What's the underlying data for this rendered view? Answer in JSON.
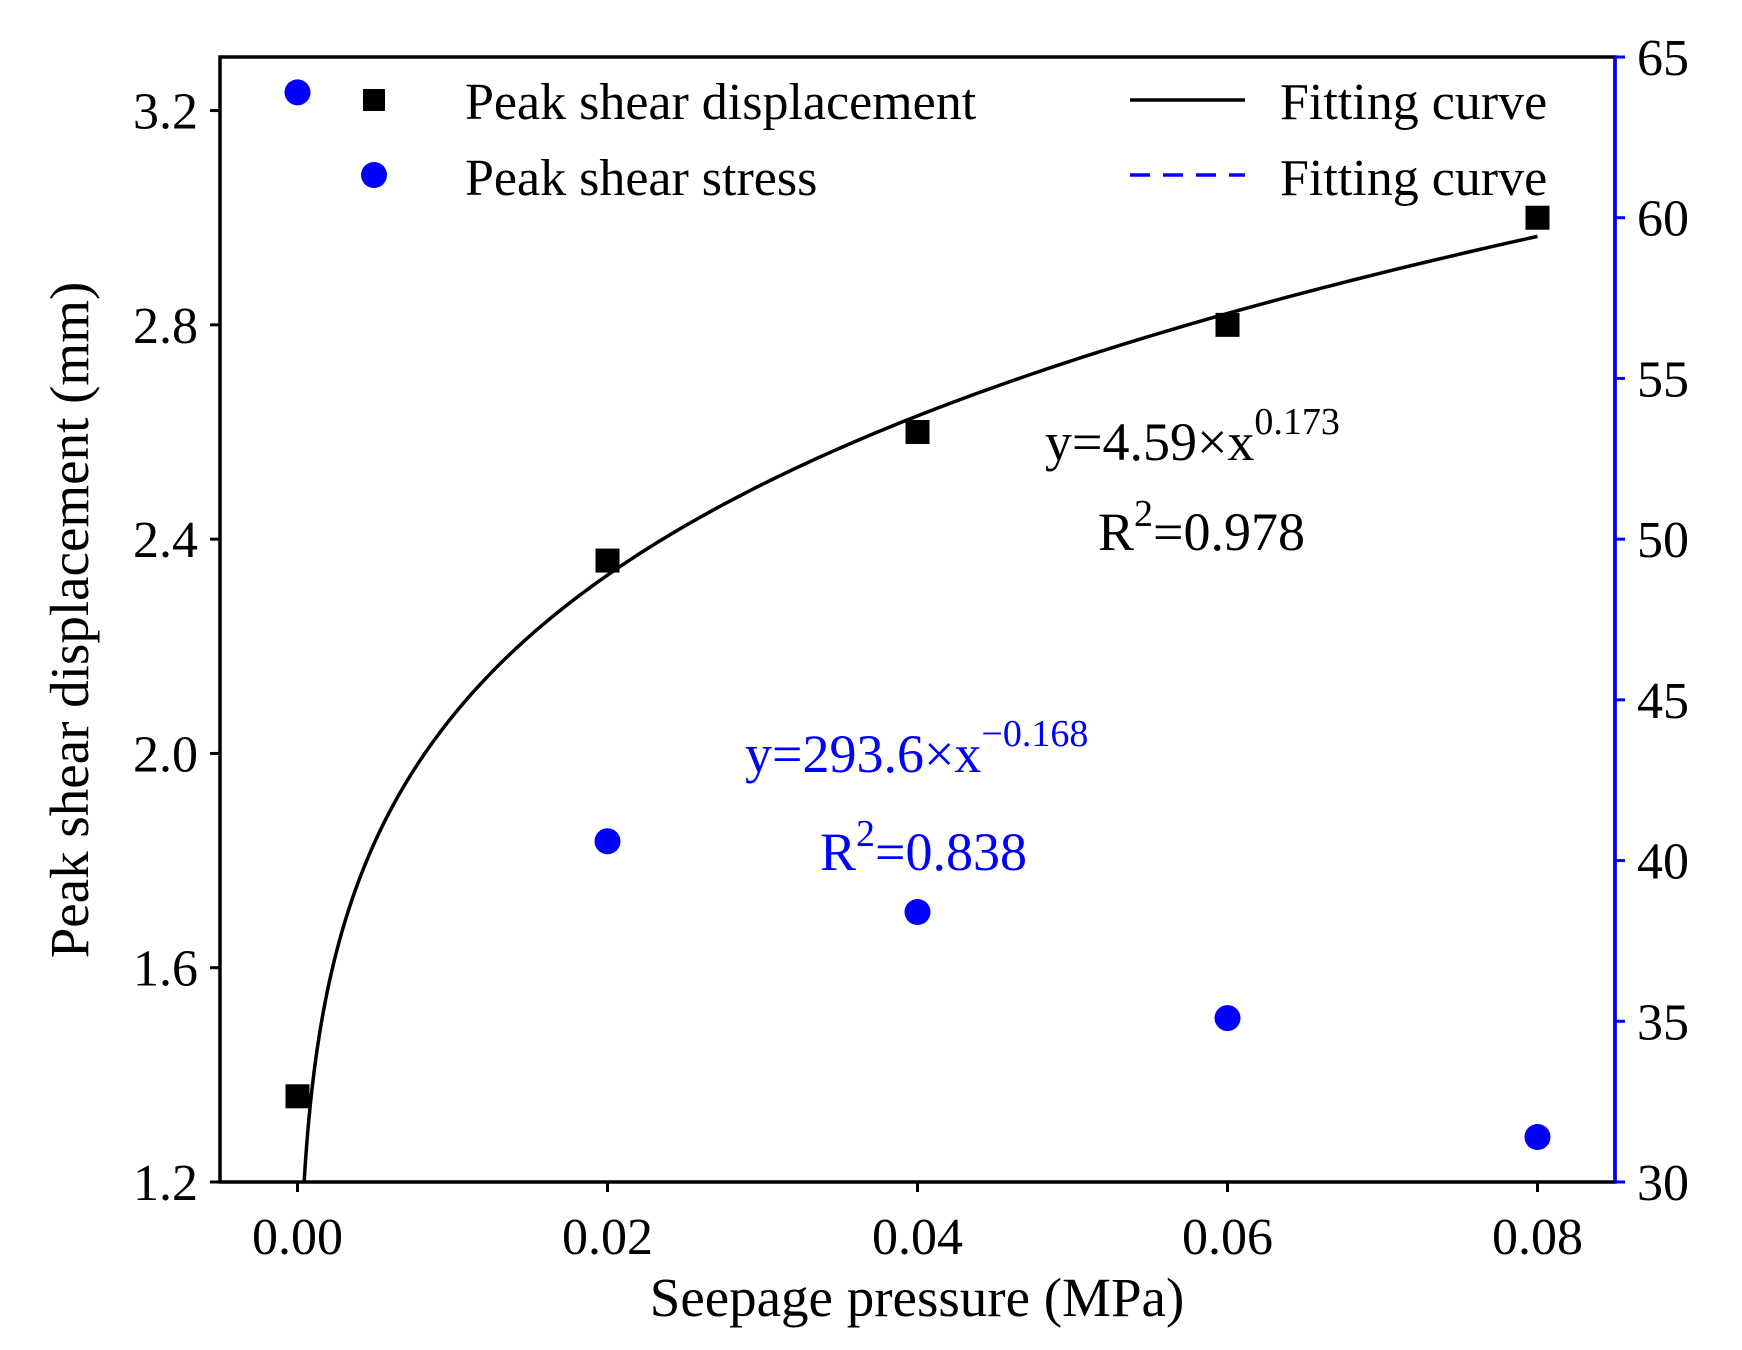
{
  "chart_data": {
    "type": "scatter",
    "title": "",
    "xlabel": "Seepage pressure (MPa)",
    "ylabel": "Peak shear displacement (mm)",
    "y2label": "",
    "xlim": [
      -0.005,
      0.085
    ],
    "ylim": [
      1.2,
      3.3
    ],
    "y2lim": [
      30,
      65
    ],
    "x_ticks": [
      "0.00",
      "0.02",
      "0.04",
      "0.06",
      "0.08"
    ],
    "y_ticks": [
      "1.2",
      "1.6",
      "2.0",
      "2.4",
      "2.8",
      "3.2"
    ],
    "y2_ticks": [
      "30",
      "35",
      "40",
      "45",
      "50",
      "55",
      "60",
      "65"
    ],
    "grid": false,
    "legend_position": "top",
    "series": [
      {
        "name": "Peak shear displacement",
        "axis": "left",
        "marker": "square",
        "color": "#000000",
        "x": [
          0.0,
          0.02,
          0.04,
          0.06,
          0.08
        ],
        "y": [
          1.36,
          2.36,
          2.6,
          2.8,
          3.0
        ]
      },
      {
        "name": "Peak shear stress",
        "axis": "right",
        "marker": "circle",
        "color": "#0000ff",
        "x": [
          0.0,
          0.02,
          0.04,
          0.06,
          0.08
        ],
        "y": [
          63.9,
          40.6,
          38.4,
          35.1,
          31.4
        ]
      }
    ],
    "fits": [
      {
        "name": "Fitting curve",
        "axis": "left",
        "style": "solid",
        "color": "#000000",
        "a": 4.59,
        "b": 0.173,
        "equation_prefix": "y=4.59×x",
        "equation_exponent": "0.173",
        "r2_prefix": "R",
        "r2_sup": "2",
        "r2_value": "=0.978"
      },
      {
        "name": "Fitting curve",
        "axis": "right",
        "style": "dashed",
        "color": "#0000ff",
        "a": 293.6,
        "b": -0.168,
        "equation_prefix": "y=293.6×x",
        "equation_exponent": "−0.168",
        "r2_prefix": "R",
        "r2_sup": "2",
        "r2_value": "=0.838"
      }
    ]
  }
}
